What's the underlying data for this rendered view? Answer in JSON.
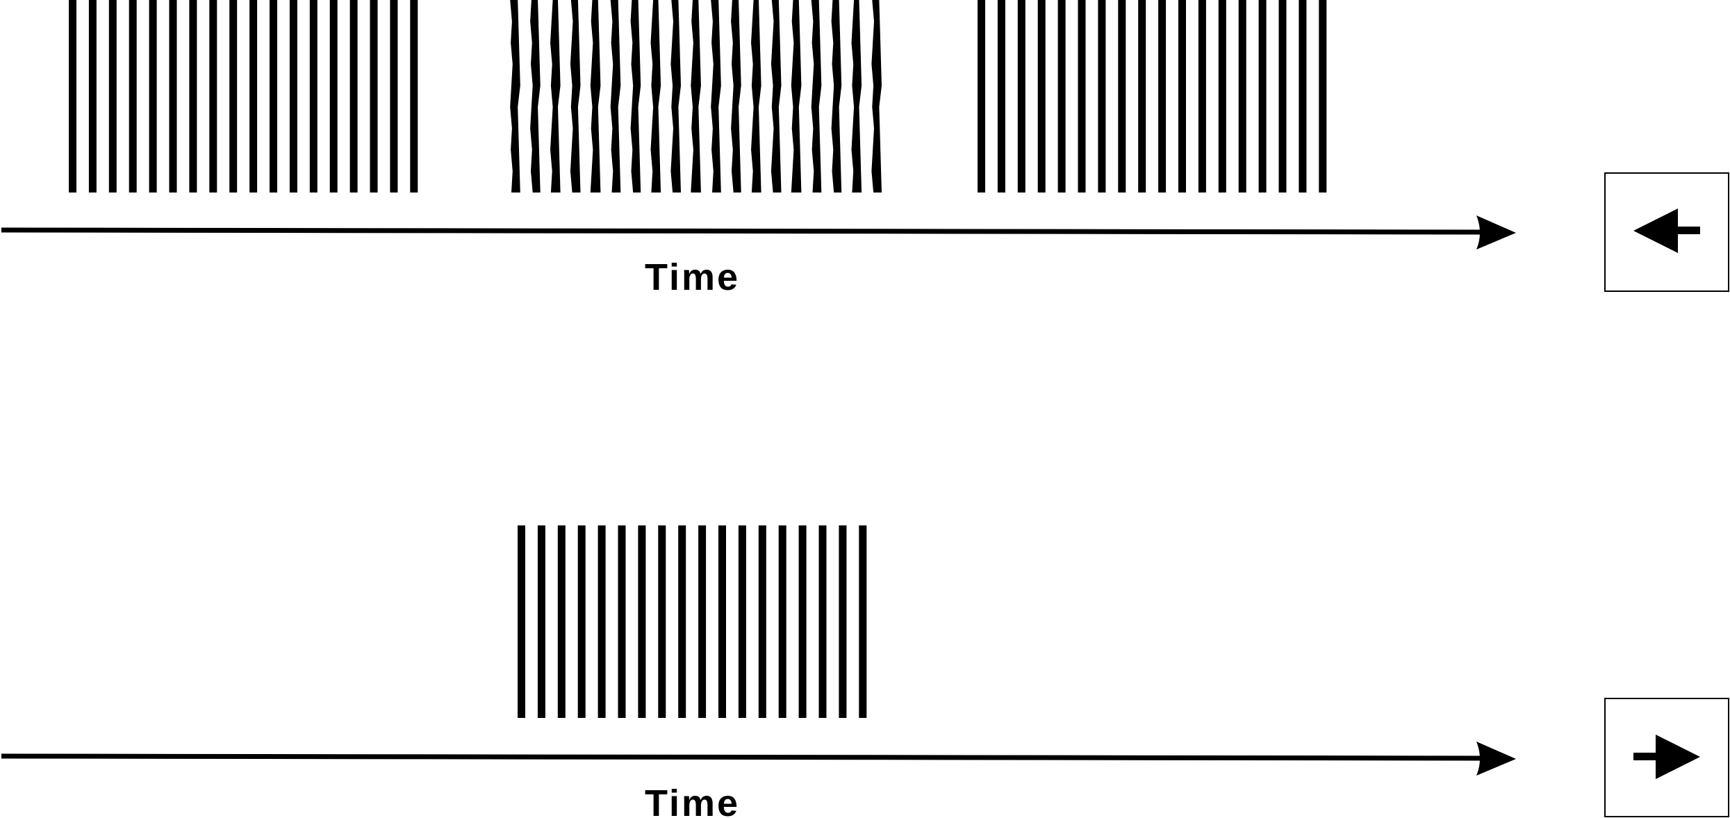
{
  "colors": {
    "ink": "#000000",
    "background": "#ffffff"
  },
  "panels": [
    {
      "id": "top",
      "axis_label": "Time",
      "response_icon": "left-arrow-icon",
      "bar_groups": [
        {
          "id": "group-1",
          "bars": 18,
          "style": "straight"
        },
        {
          "id": "group-2",
          "bars": 19,
          "style": "jagged"
        },
        {
          "id": "group-3",
          "bars": 18,
          "style": "straight"
        }
      ]
    },
    {
      "id": "bottom",
      "axis_label": "Time",
      "response_icon": "right-arrow-icon",
      "bar_groups": [
        {
          "id": "group-1",
          "bars": 18,
          "style": "straight"
        }
      ]
    }
  ]
}
